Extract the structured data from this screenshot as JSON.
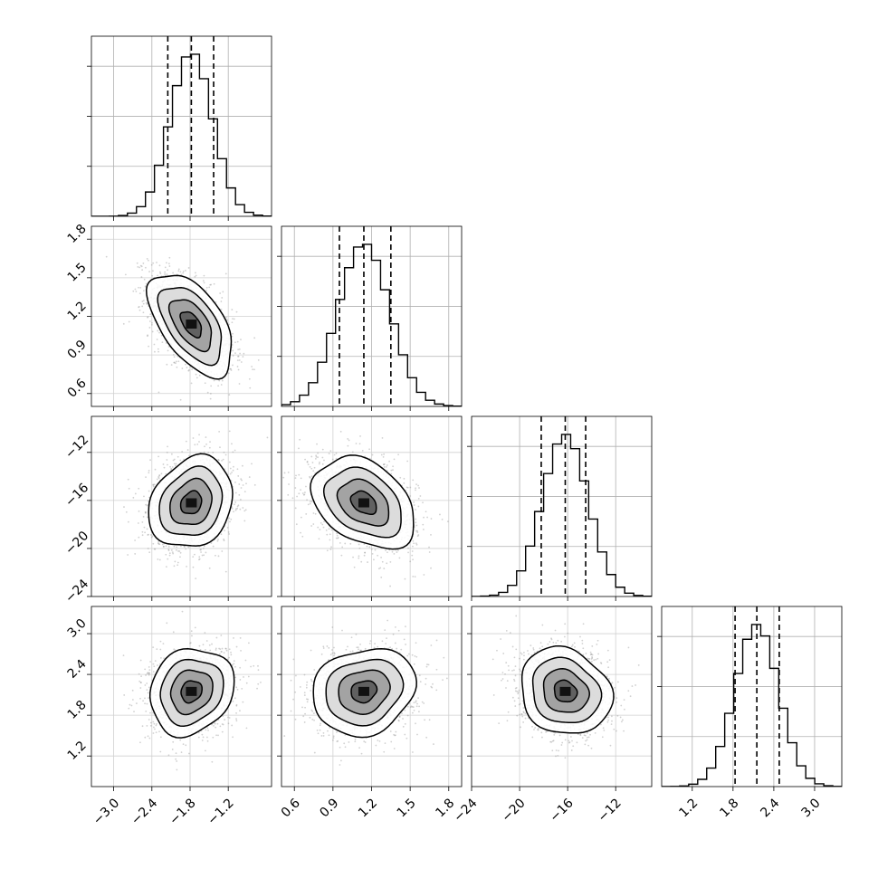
{
  "chart_data": {
    "type": "corner",
    "grid": true,
    "parameters": [
      {
        "range": [
          -3.35,
          -0.52
        ],
        "ticks": [
          -3.0,
          -2.4,
          -1.8,
          -1.2
        ],
        "tick_labels": [
          "−3.0",
          "−2.4",
          "−1.8",
          "−1.2"
        ],
        "mean": -1.78,
        "sd": 0.33,
        "quantiles": [
          -2.15,
          -1.78,
          -1.43
        ]
      },
      {
        "range": [
          0.5,
          1.9
        ],
        "ticks": [
          0.6,
          0.9,
          1.2,
          1.5,
          1.8
        ],
        "tick_labels": [
          "0.6",
          "0.9",
          "1.2",
          "1.5",
          "1.8"
        ],
        "mean": 1.14,
        "sd": 0.2,
        "quantiles": [
          0.95,
          1.14,
          1.35
        ]
      },
      {
        "range": [
          -24.0,
          -9.0
        ],
        "ticks": [
          -24,
          -20,
          -16,
          -12
        ],
        "tick_labels": [
          "−24",
          "−20",
          "−16",
          "−12"
        ],
        "mean": -16.2,
        "sd": 1.9,
        "quantiles": [
          -18.2,
          -16.2,
          -14.5
        ]
      },
      {
        "range": [
          0.75,
          3.4
        ],
        "ticks": [
          1.2,
          1.8,
          2.4,
          3.0
        ],
        "tick_labels": [
          "1.2",
          "1.8",
          "2.4",
          "3.0"
        ],
        "mean": 2.15,
        "sd": 0.32,
        "quantiles": [
          1.83,
          2.15,
          2.48
        ]
      }
    ],
    "correlations": [
      [
        1.0,
        -0.55,
        0.2,
        0.15
      ],
      [
        -0.55,
        1.0,
        -0.35,
        0.15
      ],
      [
        0.2,
        -0.35,
        1.0,
        -0.15
      ],
      [
        0.15,
        0.15,
        -0.15,
        1.0
      ]
    ],
    "contour_levels_sigma": [
      0.5,
      1.0,
      1.5,
      2.0
    ]
  }
}
